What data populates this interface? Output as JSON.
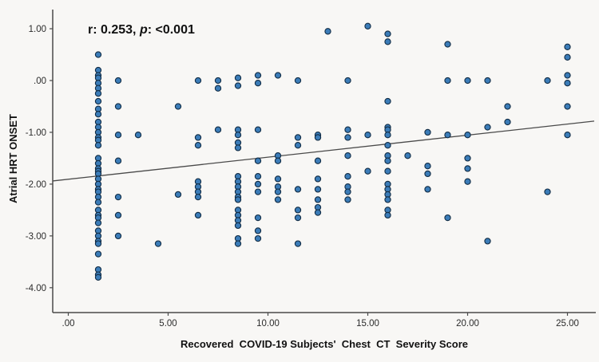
{
  "annotation": {
    "prefix": "r: 0.253, ",
    "p_italic": "p",
    "suffix": ": <0.001",
    "full": "r: 0.253, p: <0.001"
  },
  "chart_data": {
    "type": "scatter",
    "title": "",
    "xlabel": "Recovered  COVID-19 Subjects'  Chest  CT  Severity Score",
    "ylabel": "Atrial HRT ONSET",
    "xlim": [
      -0.78,
      26.42
    ],
    "ylim": [
      -4.48,
      1.37
    ],
    "x_ticks": [
      0,
      5,
      10,
      15,
      20,
      25
    ],
    "x_tick_labels": [
      ".00",
      "5.00",
      "10.00",
      "15.00",
      "20.00",
      "25.00"
    ],
    "y_ticks": [
      1,
      0,
      -1,
      -2,
      -3,
      -4
    ],
    "y_tick_labels": [
      "1.00",
      ".00",
      "-1.00",
      "-2.00",
      "-3.00",
      "-4.00"
    ],
    "grid": false,
    "legend": "none",
    "annotation_text": "r: 0.253, p: <0.001",
    "regression_line": {
      "slope": 0.0426,
      "intercept": -1.906,
      "x_start": -0.78,
      "x_end": 26.34
    },
    "columns": [
      {
        "x": 1.5,
        "y": [
          0.5,
          0.2,
          0.1,
          0.05,
          -0.05,
          -0.15,
          -0.25,
          -0.4,
          -0.55,
          -0.65,
          -0.8,
          -0.9,
          -1.0,
          -1.1,
          -1.15,
          -1.25,
          -1.5,
          -1.6,
          -1.7,
          -1.75,
          -1.8,
          -1.9,
          -2.0,
          -2.1,
          -2.15,
          -2.25,
          -2.35,
          -2.5,
          -2.6,
          -2.65,
          -2.75,
          -2.9,
          -3.0,
          -3.1,
          -3.15,
          -3.35,
          -3.65,
          -3.75,
          -3.8
        ]
      },
      {
        "x": 2.5,
        "y": [
          0,
          -0.5,
          -1.05,
          -1.55,
          -2.25,
          -2.6,
          -3.0
        ]
      },
      {
        "x": 3.5,
        "y": [
          -1.05
        ]
      },
      {
        "x": 4.5,
        "y": [
          -3.15
        ]
      },
      {
        "x": 5.5,
        "y": [
          -0.5,
          -2.2
        ]
      },
      {
        "x": 6.5,
        "y": [
          0,
          -1.1,
          -1.25,
          -1.95,
          -2.05,
          -2.15,
          -2.25,
          -2.6
        ]
      },
      {
        "x": 7.5,
        "y": [
          0,
          -0.15,
          -0.95
        ]
      },
      {
        "x": 8.5,
        "y": [
          0.05,
          -0.1,
          -0.95,
          -1.05,
          -1.2,
          -1.3,
          -1.85,
          -1.95,
          -2.05,
          -2.15,
          -2.25,
          -2.3,
          -2.5,
          -2.6,
          -2.7,
          -2.8,
          -3.05,
          -3.15
        ]
      },
      {
        "x": 9.5,
        "y": [
          0.1,
          -0.05,
          -0.95,
          -1.55,
          -1.85,
          -2.0,
          -2.15,
          -2.65,
          -2.9,
          -3.05
        ]
      },
      {
        "x": 10.5,
        "y": [
          0.1,
          -1.45,
          -1.55,
          -1.9,
          -2.05,
          -2.15,
          -2.3
        ]
      },
      {
        "x": 11.5,
        "y": [
          0,
          -1.1,
          -1.25,
          -2.1,
          -2.5,
          -2.65,
          -3.15
        ]
      },
      {
        "x": 12.5,
        "y": [
          -1.05,
          -1.1,
          -1.55,
          -1.9,
          -2.1,
          -2.3,
          -2.45,
          -2.55
        ]
      },
      {
        "x": 13,
        "y": [
          0.95
        ]
      },
      {
        "x": 14,
        "y": [
          0,
          -0.95,
          -1.1,
          -1.45,
          -1.85,
          -2.05,
          -2.15,
          -2.3
        ]
      },
      {
        "x": 15,
        "y": [
          1.05,
          -1.05,
          -1.75
        ]
      },
      {
        "x": 16,
        "y": [
          0.9,
          0.75,
          -0.4,
          -0.9,
          -0.95,
          -1.05,
          -1.25,
          -1.45,
          -1.55,
          -1.75,
          -2.0,
          -2.1,
          -2.2,
          -2.3,
          -2.5,
          -2.6
        ]
      },
      {
        "x": 17,
        "y": [
          -1.45
        ]
      },
      {
        "x": 18,
        "y": [
          -1.0,
          -1.65,
          -1.8,
          -2.1
        ]
      },
      {
        "x": 19,
        "y": [
          0.7,
          0,
          -1.05,
          -2.65
        ]
      },
      {
        "x": 20,
        "y": [
          0,
          -1.05,
          -1.5,
          -1.7,
          -1.95
        ]
      },
      {
        "x": 21,
        "y": [
          0,
          -0.9,
          -3.1
        ]
      },
      {
        "x": 22,
        "y": [
          -0.5,
          -0.8
        ]
      },
      {
        "x": 24,
        "y": [
          0,
          -2.15
        ]
      },
      {
        "x": 25,
        "y": [
          0.65,
          0.45,
          0.1,
          -0.05,
          -0.5,
          -1.05
        ]
      }
    ]
  },
  "style": {
    "point_fill": "#3b7cb8",
    "point_stroke": "#122c44",
    "axis_color": "#4a4a4a",
    "line_color": "#4a4a4a",
    "background": "#f8f7f5"
  }
}
